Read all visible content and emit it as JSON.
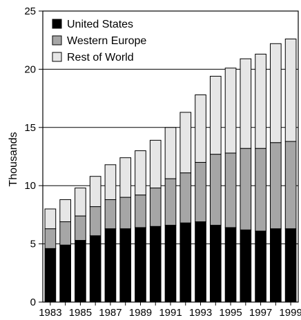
{
  "chart_data": {
    "type": "bar",
    "stacked": true,
    "title": "",
    "xlabel": "",
    "ylabel": "Thousands",
    "ylim": [
      0,
      25
    ],
    "yticks": [
      0,
      5,
      10,
      15,
      20,
      25
    ],
    "categories": [
      "1983",
      "1984",
      "1985",
      "1986",
      "1987",
      "1988",
      "1989",
      "1990",
      "1991",
      "1992",
      "1993",
      "1994",
      "1995",
      "1996",
      "1997",
      "1998",
      "1999"
    ],
    "xtick_labels": [
      "1983",
      "1985",
      "1987",
      "1989",
      "1991",
      "1993",
      "1995",
      "1997",
      "1999"
    ],
    "grid": "horizontal at 5, 10, 15, 20",
    "legend": "top-left",
    "series": [
      {
        "name": "United States",
        "color": "#000000",
        "values": [
          4.6,
          4.9,
          5.3,
          5.7,
          6.3,
          6.3,
          6.4,
          6.5,
          6.6,
          6.8,
          6.9,
          6.6,
          6.4,
          6.2,
          6.1,
          6.3,
          6.3
        ]
      },
      {
        "name": "Western Europe",
        "color": "#a6a6a6",
        "values": [
          1.7,
          2.0,
          2.1,
          2.5,
          2.5,
          2.7,
          2.8,
          3.3,
          4.0,
          4.3,
          5.1,
          6.1,
          6.4,
          7.0,
          7.1,
          7.4,
          7.5
        ]
      },
      {
        "name": "Rest of World",
        "color": "#e6e6e6",
        "values": [
          1.7,
          1.9,
          2.4,
          2.6,
          3.0,
          3.4,
          3.8,
          4.1,
          4.4,
          5.2,
          5.8,
          6.7,
          7.3,
          7.7,
          8.1,
          8.5,
          8.8
        ]
      }
    ]
  }
}
